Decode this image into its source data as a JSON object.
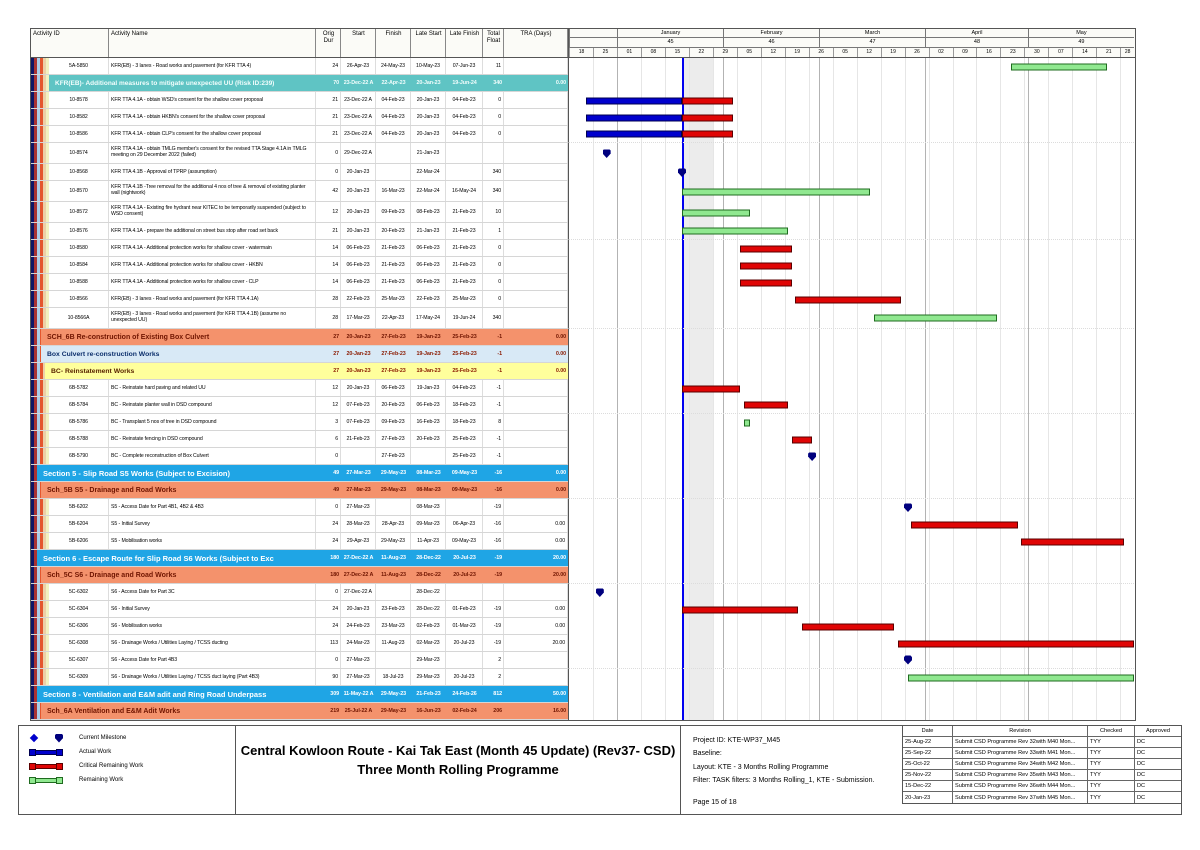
{
  "colors": {
    "actual": "#0000CD",
    "critical": "#E00505",
    "remaining": "#90E890",
    "milestone": "#00007E",
    "section_bg": "#1FA5E5",
    "sch_bg": "#F4926C",
    "teal_bg": "#5FC4C4",
    "boxculvert_bg": "#D8E9F6",
    "yellow_bg": "#FFFF9C"
  },
  "table": {
    "columns": [
      "Activity ID",
      "Activity Name",
      "Orig Dur",
      "Start",
      "Finish",
      "Late Start",
      "Late Finish",
      "Total\nFloat",
      "TRA (Days)"
    ],
    "rows": [
      {
        "kind": "activity",
        "id": "5A-5850",
        "name": "KFR(EB) - 3 lanes - Road works and pavement (for KFR TTA 4)",
        "od": "24",
        "start": "26-Apr-23",
        "finish": "24-May-23",
        "ls": "10-May-23",
        "lf": "07-Jun-23",
        "tf": "11",
        "tra": "",
        "bars": [
          {
            "style": "remaining",
            "s": "2023-04-26",
            "f": "2023-05-24"
          }
        ]
      },
      {
        "kind": "teal",
        "name": "KFR(EB)- Additional measures to mitigate unexpected UU (Risk ID:239)",
        "od": "70",
        "start": "23-Dec-22 A",
        "finish": "22-Apr-23",
        "ls": "20-Jan-23",
        "lf": "19-Jun-24",
        "tf": "340",
        "tra": "0.00"
      },
      {
        "kind": "activity",
        "id": "10-8578",
        "name": "KFR TTA 4.1A - obtain WSD's consent for the shallow cover proposal",
        "od": "21",
        "start": "23-Dec-22 A",
        "finish": "04-Feb-23",
        "ls": "20-Jan-23",
        "lf": "04-Feb-23",
        "tf": "0",
        "tra": "",
        "bars": [
          {
            "style": "actual",
            "s": "2022-12-23",
            "f": "2023-01-20"
          },
          {
            "style": "critical",
            "s": "2023-01-20",
            "f": "2023-02-04"
          }
        ]
      },
      {
        "kind": "activity",
        "id": "10-8582",
        "name": "KFR TTA 4.1A - obtain HKBN's consent for the shallow cover  proposal",
        "od": "21",
        "start": "23-Dec-22 A",
        "finish": "04-Feb-23",
        "ls": "20-Jan-23",
        "lf": "04-Feb-23",
        "tf": "0",
        "tra": "",
        "bars": [
          {
            "style": "actual",
            "s": "2022-12-23",
            "f": "2023-01-20"
          },
          {
            "style": "critical",
            "s": "2023-01-20",
            "f": "2023-02-04"
          }
        ]
      },
      {
        "kind": "activity",
        "id": "10-8586",
        "name": "KFR TTA 4.1A - obtain CLP's consent for the shallow cover  proposal",
        "od": "21",
        "start": "23-Dec-22 A",
        "finish": "04-Feb-23",
        "ls": "20-Jan-23",
        "lf": "04-Feb-23",
        "tf": "0",
        "tra": "",
        "bars": [
          {
            "style": "actual",
            "s": "2022-12-23",
            "f": "2023-01-20"
          },
          {
            "style": "critical",
            "s": "2023-01-20",
            "f": "2023-02-04"
          }
        ]
      },
      {
        "kind": "activity",
        "wrap": true,
        "id": "10-8574",
        "name": "KFR TTA 4.1A - obtain TMLG member's consent for the revised TTA Stage 4.1A in TMLG meeting on 29 December 2022 (failed)",
        "od": "0",
        "start": "29-Dec-22 A",
        "finish": "",
        "ls": "21-Jan-23",
        "lf": "",
        "tf": "",
        "tra": "",
        "ms": [
          "2022-12-29"
        ]
      },
      {
        "kind": "activity",
        "id": "10-8568",
        "name": "KFR TTA 4.1B - Approval of TPRP (assumption)",
        "od": "0",
        "start": "20-Jan-23",
        "finish": "",
        "ls": "22-Mar-24",
        "lf": "",
        "tf": "340",
        "tra": "",
        "ms": [
          "2023-01-20"
        ]
      },
      {
        "kind": "activity",
        "wrap": true,
        "id": "10-8570",
        "name": "KFR TTA 4.1B -Tree removal for the additional 4 nos of tree &  removal of existing planter wall (nightwork)",
        "od": "42",
        "start": "20-Jan-23",
        "finish": "16-Mar-23",
        "ls": "22-Mar-24",
        "lf": "16-May-24",
        "tf": "340",
        "tra": "",
        "bars": [
          {
            "style": "remaining",
            "s": "2023-01-20",
            "f": "2023-03-16"
          }
        ]
      },
      {
        "kind": "activity",
        "wrap": true,
        "id": "10-8572",
        "name": "KFR TTA 4.1A - Existing fire hydrant near KITEC to be temporarily suspended (subject to WSD consent)",
        "od": "12",
        "start": "20-Jan-23",
        "finish": "09-Feb-23",
        "ls": "08-Feb-23",
        "lf": "21-Feb-23",
        "tf": "10",
        "tra": "",
        "bars": [
          {
            "style": "remaining",
            "s": "2023-01-20",
            "f": "2023-02-09"
          }
        ]
      },
      {
        "kind": "activity",
        "id": "10-8576",
        "name": "KFR TTA 4.1A - prepare the additional on street bus stop after road set back",
        "od": "21",
        "start": "20-Jan-23",
        "finish": "20-Feb-23",
        "ls": "21-Jan-23",
        "lf": "21-Feb-23",
        "tf": "1",
        "tra": "",
        "bars": [
          {
            "style": "remaining",
            "s": "2023-01-20",
            "f": "2023-02-20"
          }
        ]
      },
      {
        "kind": "activity",
        "id": "10-8580",
        "name": "KFR TTA 4.1A - Additional protection works for shallow cover - watermain",
        "od": "14",
        "start": "06-Feb-23",
        "finish": "21-Feb-23",
        "ls": "06-Feb-23",
        "lf": "21-Feb-23",
        "tf": "0",
        "tra": "",
        "bars": [
          {
            "style": "critical",
            "s": "2023-02-06",
            "f": "2023-02-21"
          }
        ]
      },
      {
        "kind": "activity",
        "id": "10-8584",
        "name": "KFR TTA 4.1A - Additional protection works for shallow cover - HKBN",
        "od": "14",
        "start": "06-Feb-23",
        "finish": "21-Feb-23",
        "ls": "06-Feb-23",
        "lf": "21-Feb-23",
        "tf": "0",
        "tra": "",
        "bars": [
          {
            "style": "critical",
            "s": "2023-02-06",
            "f": "2023-02-21"
          }
        ]
      },
      {
        "kind": "activity",
        "id": "10-8588",
        "name": "KFR TTA 4.1A - Additional protection works for shallow cover - CLP",
        "od": "14",
        "start": "06-Feb-23",
        "finish": "21-Feb-23",
        "ls": "06-Feb-23",
        "lf": "21-Feb-23",
        "tf": "0",
        "tra": "",
        "bars": [
          {
            "style": "critical",
            "s": "2023-02-06",
            "f": "2023-02-21"
          }
        ]
      },
      {
        "kind": "activity",
        "id": "10-8566",
        "name": "KFR(EB) - 3 lanes - Road works and pavement (for KFR TTA 4.1A)",
        "od": "28",
        "start": "22-Feb-23",
        "finish": "25-Mar-23",
        "ls": "22-Feb-23",
        "lf": "25-Mar-23",
        "tf": "0",
        "tra": "",
        "bars": [
          {
            "style": "critical",
            "s": "2023-02-22",
            "f": "2023-03-25"
          }
        ]
      },
      {
        "kind": "activity",
        "wrap": true,
        "id": "10-8566A",
        "name": "KFR(EB) - 3 lanes - Road works and pavement (for KFR TTA 4.1B) (assume no unexpected UU)",
        "od": "28",
        "start": "17-Mar-23",
        "finish": "22-Apr-23",
        "ls": "17-May-24",
        "lf": "19-Jun-24",
        "tf": "340",
        "tra": "",
        "bars": [
          {
            "style": "remaining",
            "s": "2023-03-17",
            "f": "2023-04-22"
          }
        ]
      },
      {
        "kind": "sch",
        "name": "SCH_6B Re-construction of Existing Box Culvert",
        "od": "27",
        "start": "20-Jan-23",
        "finish": "27-Feb-23",
        "ls": "19-Jan-23",
        "lf": "25-Feb-23",
        "tf": "-1",
        "tra": "0.00"
      },
      {
        "kind": "boxc",
        "name": "Box Culvert re-construction Works",
        "od": "27",
        "start": "20-Jan-23",
        "finish": "27-Feb-23",
        "ls": "19-Jan-23",
        "lf": "25-Feb-23",
        "tf": "-1",
        "tra": "0.00"
      },
      {
        "kind": "yel",
        "name": "BC- Reinstatement Works",
        "od": "27",
        "start": "20-Jan-23",
        "finish": "27-Feb-23",
        "ls": "19-Jan-23",
        "lf": "25-Feb-23",
        "tf": "-1",
        "tra": "0.00"
      },
      {
        "kind": "activity",
        "id": "6B-5782",
        "name": "BC - Reinstate hard paving and related UU",
        "od": "12",
        "start": "20-Jan-23",
        "finish": "06-Feb-23",
        "ls": "19-Jan-23",
        "lf": "04-Feb-23",
        "tf": "-1",
        "tra": "",
        "bars": [
          {
            "style": "critical",
            "s": "2023-01-20",
            "f": "2023-02-06"
          }
        ]
      },
      {
        "kind": "activity",
        "id": "6B-5784",
        "name": "BC - Reinstate planter wall in DSD compound",
        "od": "12",
        "start": "07-Feb-23",
        "finish": "20-Feb-23",
        "ls": "06-Feb-23",
        "lf": "18-Feb-23",
        "tf": "-1",
        "tra": "",
        "bars": [
          {
            "style": "critical",
            "s": "2023-02-07",
            "f": "2023-02-20"
          }
        ]
      },
      {
        "kind": "activity",
        "id": "6B-5786",
        "name": "BC - Transplant 5 nos of tree in DSD compound",
        "od": "3",
        "start": "07-Feb-23",
        "finish": "09-Feb-23",
        "ls": "16-Feb-23",
        "lf": "18-Feb-23",
        "tf": "8",
        "tra": "",
        "bars": [
          {
            "style": "remaining",
            "s": "2023-02-07",
            "f": "2023-02-09"
          }
        ]
      },
      {
        "kind": "activity",
        "id": "6B-5788",
        "name": "BC - Reinstate fencing in DSD compound",
        "od": "6",
        "start": "21-Feb-23",
        "finish": "27-Feb-23",
        "ls": "20-Feb-23",
        "lf": "25-Feb-23",
        "tf": "-1",
        "tra": "",
        "bars": [
          {
            "style": "critical",
            "s": "2023-02-21",
            "f": "2023-02-27"
          }
        ]
      },
      {
        "kind": "activity",
        "id": "6B-5790",
        "name": "BC - Complete reconstruction of Box Culvert",
        "od": "0",
        "start": "",
        "finish": "27-Feb-23",
        "ls": "",
        "lf": "25-Feb-23",
        "tf": "-1",
        "tra": "",
        "ms": [
          "2023-02-27"
        ]
      },
      {
        "kind": "sec",
        "name": "Section 5 - Slip Road S5 Works (Subject to Excision)",
        "od": "49",
        "start": "27-Mar-23",
        "finish": "29-May-23",
        "ls": "08-Mar-23",
        "lf": "09-May-23",
        "tf": "-16",
        "tra": "0.00"
      },
      {
        "kind": "sch",
        "name": "Sch_5B S5 - Drainage and Road Works",
        "od": "49",
        "start": "27-Mar-23",
        "finish": "29-May-23",
        "ls": "08-Mar-23",
        "lf": "09-May-23",
        "tf": "-16",
        "tra": "0.00"
      },
      {
        "kind": "activity",
        "id": "5B-6202",
        "name": "S5 - Access Date for Part 4B1, 4B2 & 4B3",
        "od": "0",
        "start": "27-Mar-23",
        "finish": "",
        "ls": "08-Mar-23",
        "lf": "",
        "tf": "-19",
        "tra": "",
        "ms": [
          "2023-03-27"
        ]
      },
      {
        "kind": "activity",
        "id": "5B-6204",
        "name": "S5 - Initial Survey",
        "od": "24",
        "start": "28-Mar-23",
        "finish": "28-Apr-23",
        "ls": "09-Mar-23",
        "lf": "06-Apr-23",
        "tf": "-16",
        "tra": "0.00",
        "bars": [
          {
            "style": "critical",
            "s": "2023-03-28",
            "f": "2023-04-28"
          }
        ]
      },
      {
        "kind": "activity",
        "id": "5B-6206",
        "name": "S5 - Mobilisation works",
        "od": "24",
        "start": "29-Apr-23",
        "finish": "29-May-23",
        "ls": "11-Apr-23",
        "lf": "09-May-23",
        "tf": "-16",
        "tra": "0.00",
        "bars": [
          {
            "style": "critical",
            "s": "2023-04-29",
            "f": "2023-05-29"
          }
        ]
      },
      {
        "kind": "sec",
        "name": "Section 6 - Escape Route for Slip Road S6 Works (Subject to Exc",
        "od": "180",
        "start": "27-Dec-22 A",
        "finish": "11-Aug-23",
        "ls": "28-Dec-22",
        "lf": "20-Jul-23",
        "tf": "-19",
        "tra": "20.00"
      },
      {
        "kind": "sch",
        "name": "Sch_5C S6 - Drainage and Road Works",
        "od": "180",
        "start": "27-Dec-22 A",
        "finish": "11-Aug-23",
        "ls": "28-Dec-22",
        "lf": "20-Jul-23",
        "tf": "-19",
        "tra": "20.00"
      },
      {
        "kind": "activity",
        "id": "5C-6302",
        "name": "S6 - Access Date for Part 3C",
        "od": "0",
        "start": "27-Dec-22 A",
        "finish": "",
        "ls": "28-Dec-22",
        "lf": "",
        "tf": "",
        "tra": "",
        "ms": [
          "2022-12-27"
        ]
      },
      {
        "kind": "activity",
        "id": "5C-6304",
        "name": "S6 - Initial Survey",
        "od": "24",
        "start": "20-Jan-23",
        "finish": "23-Feb-23",
        "ls": "28-Dec-22",
        "lf": "01-Feb-23",
        "tf": "-19",
        "tra": "0.00",
        "bars": [
          {
            "style": "critical",
            "s": "2023-01-20",
            "f": "2023-02-23"
          }
        ]
      },
      {
        "kind": "activity",
        "id": "5C-6306",
        "name": "S6 - Mobilisation works",
        "od": "24",
        "start": "24-Feb-23",
        "finish": "23-Mar-23",
        "ls": "02-Feb-23",
        "lf": "01-Mar-23",
        "tf": "-19",
        "tra": "0.00",
        "bars": [
          {
            "style": "critical",
            "s": "2023-02-24",
            "f": "2023-03-23"
          }
        ]
      },
      {
        "kind": "activity",
        "id": "5C-6308",
        "name": "S6 - Drainage Works / Utilities Laying / TCSS ducting",
        "od": "113",
        "start": "24-Mar-23",
        "finish": "11-Aug-23",
        "ls": "02-Mar-23",
        "lf": "20-Jul-23",
        "tf": "-19",
        "tra": "20.00",
        "bars": [
          {
            "style": "critical",
            "s": "2023-03-24",
            "f": "2023-08-11"
          }
        ]
      },
      {
        "kind": "activity",
        "id": "5C-6307",
        "name": "S6 - Access Date for Part 4B3",
        "od": "0",
        "start": "27-Mar-23",
        "finish": "",
        "ls": "29-Mar-23",
        "lf": "",
        "tf": "2",
        "tra": "",
        "ms": [
          "2023-03-27"
        ]
      },
      {
        "kind": "activity",
        "id": "5C-6309",
        "name": "S6 - Drainage Works / Utilities Laying / TCSS duct laying (Part 4B3)",
        "od": "90",
        "start": "27-Mar-23",
        "finish": "18-Jul-23",
        "ls": "29-Mar-23",
        "lf": "20-Jul-23",
        "tf": "2",
        "tra": "",
        "bars": [
          {
            "style": "remaining",
            "s": "2023-03-27",
            "f": "2023-07-18"
          }
        ]
      },
      {
        "kind": "sec",
        "name": "Section 8 - Ventilation and E&M adit and Ring Road Underpass",
        "od": "309",
        "start": "11-May-22 A",
        "finish": "29-May-23",
        "ls": "21-Feb-23",
        "lf": "24-Feb-26",
        "tf": "812",
        "tra": "50.00"
      },
      {
        "kind": "sch",
        "name": "Sch_6A Ventilation and E&M Adit Works",
        "od": "219",
        "start": "25-Jul-22 A",
        "finish": "29-May-23",
        "ls": "16-Jun-23",
        "lf": "02-Feb-24",
        "tf": "206",
        "tra": "16.00"
      }
    ]
  },
  "gantt": {
    "timeline_start": "2022-12-18",
    "timeline_end": "2023-06-01",
    "data_date": "2023-01-20",
    "shade_end": "2023-01-29",
    "months": [
      {
        "label": "January",
        "num": "45",
        "s": "2023-01-01",
        "e": "2023-02-01"
      },
      {
        "label": "February",
        "num": "46",
        "s": "2023-02-01",
        "e": "2023-03-01"
      },
      {
        "label": "March",
        "num": "47",
        "s": "2023-03-01",
        "e": "2023-04-01"
      },
      {
        "label": "April",
        "num": "48",
        "s": "2023-04-01",
        "e": "2023-05-01"
      },
      {
        "label": "May",
        "num": "49",
        "s": "2023-05-01",
        "e": "2023-06-01"
      }
    ],
    "weeks": [
      "18",
      "25",
      "01",
      "08",
      "15",
      "22",
      "29",
      "05",
      "12",
      "19",
      "26",
      "05",
      "12",
      "19",
      "26",
      "02",
      "09",
      "16",
      "23",
      "30",
      "07",
      "14",
      "21",
      "28"
    ]
  },
  "footer": {
    "title_line1": "Central Kowloon Route - Kai Tak East (Month 45 Update) (Rev37- CSD)",
    "title_line2": "Three Month Rolling Programme",
    "legend": [
      {
        "label": "Current Milestone",
        "style": "milestone"
      },
      {
        "label": "Actual Work",
        "style": "actual"
      },
      {
        "label": "Critical Remaining Work",
        "style": "critical"
      },
      {
        "label": "Remaining Work",
        "style": "remaining"
      }
    ],
    "info": [
      "Project ID: KTE-WP37_M45",
      "Baseline:",
      "Layout: KTE - 3 Months Rolling Programme",
      "Filter: TASK filters: 3 Months Rolling_1, KTE - Submission."
    ],
    "page_label": "Page 15 of 18",
    "revisions": {
      "columns": [
        "Date",
        "Revision",
        "Checked",
        "Approved"
      ],
      "rows": [
        {
          "date": "25-Aug-22",
          "revision": "Submit CSD Programme Rev 32with M40 Mon...",
          "checked": "TYY",
          "approved": "DC"
        },
        {
          "date": "25-Sep-22",
          "revision": "Submit CSD Programme Rev 33with M41 Mon...",
          "checked": "TYY",
          "approved": "DC"
        },
        {
          "date": "25-Oct-22",
          "revision": "Submit CSD Programme Rev 34with M42 Mon...",
          "checked": "TYY",
          "approved": "DC"
        },
        {
          "date": "25-Nov-22",
          "revision": "Submit CSD Programme Rev 35with M43 Mon...",
          "checked": "TYY",
          "approved": "DC"
        },
        {
          "date": "15-Dec-22",
          "revision": "Submit CSD Programme Rev 36with M44 Mon...",
          "checked": "TYY",
          "approved": "DC"
        },
        {
          "date": "20-Jan-23",
          "revision": "Submit CSD Programme Rev 37with M45 Mon...",
          "checked": "TYY",
          "approved": "DC"
        }
      ]
    }
  }
}
